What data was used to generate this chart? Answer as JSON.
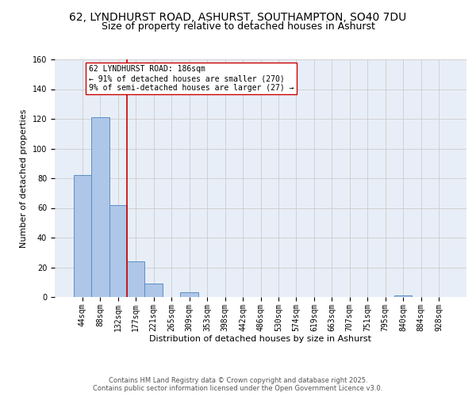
{
  "title1": "62, LYNDHURST ROAD, ASHURST, SOUTHAMPTON, SO40 7DU",
  "title2": "Size of property relative to detached houses in Ashurst",
  "xlabel": "Distribution of detached houses by size in Ashurst",
  "ylabel": "Number of detached properties",
  "bin_labels": [
    "44sqm",
    "88sqm",
    "132sqm",
    "177sqm",
    "221sqm",
    "265sqm",
    "309sqm",
    "353sqm",
    "398sqm",
    "442sqm",
    "486sqm",
    "530sqm",
    "574sqm",
    "619sqm",
    "663sqm",
    "707sqm",
    "751sqm",
    "795sqm",
    "840sqm",
    "884sqm",
    "928sqm"
  ],
  "bar_heights": [
    82,
    121,
    62,
    24,
    9,
    0,
    3,
    0,
    0,
    0,
    0,
    0,
    0,
    0,
    0,
    0,
    0,
    0,
    1,
    0,
    0
  ],
  "bar_color": "#aec6e8",
  "bar_edge_color": "#5b8ec4",
  "vline_x_index": 3,
  "vline_color": "#cc0000",
  "annotation_text": "62 LYNDHURST ROAD: 186sqm\n← 91% of detached houses are smaller (270)\n9% of semi-detached houses are larger (27) →",
  "ylim": [
    0,
    160
  ],
  "yticks": [
    0,
    20,
    40,
    60,
    80,
    100,
    120,
    140,
    160
  ],
  "grid_color": "#cccccc",
  "background_color": "#e8eef7",
  "footer_text": "Contains HM Land Registry data © Crown copyright and database right 2025.\nContains public sector information licensed under the Open Government Licence v3.0.",
  "annotation_fontsize": 7.0,
  "title_fontsize": 10,
  "subtitle_fontsize": 9,
  "tick_fontsize": 7,
  "xlabel_fontsize": 8,
  "ylabel_fontsize": 8
}
